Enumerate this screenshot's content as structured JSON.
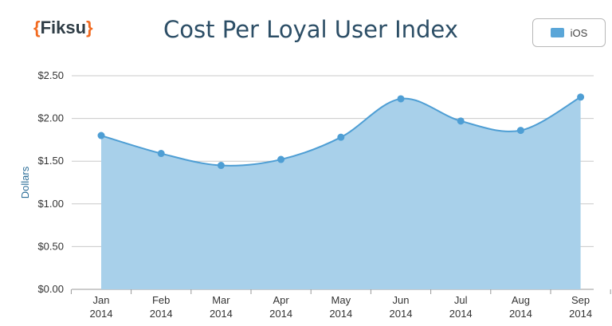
{
  "logo": {
    "open": "{",
    "text": "Fiksu",
    "close": "}"
  },
  "legend": {
    "label": "iOS"
  },
  "colors": {
    "area": "#a8d0ea",
    "line": "#4e9ed4",
    "point": "#4e9ed4",
    "grid": "#c9c9c9",
    "title": "#2c4e66",
    "brand": "#f26b21"
  },
  "chart_data": {
    "type": "area",
    "title": "Cost Per Loyal User Index",
    "xlabel": "",
    "ylabel": "Dollars",
    "categories": [
      "Jan\n2014",
      "Feb\n2014",
      "Mar\n2014",
      "Apr\n2014",
      "May\n2014",
      "Jun\n2014",
      "Jul\n2014",
      "Aug\n2014",
      "Sep\n2014"
    ],
    "series": [
      {
        "name": "iOS",
        "values": [
          1.8,
          1.59,
          1.45,
          1.52,
          1.78,
          2.23,
          1.97,
          1.86,
          2.25
        ]
      }
    ],
    "yticks": [
      "$0.00",
      "$0.50",
      "$1.00",
      "$1.50",
      "$2.00",
      "$2.50"
    ],
    "ylim": [
      0,
      2.5
    ],
    "grid": true,
    "legend_position": "top-right"
  }
}
